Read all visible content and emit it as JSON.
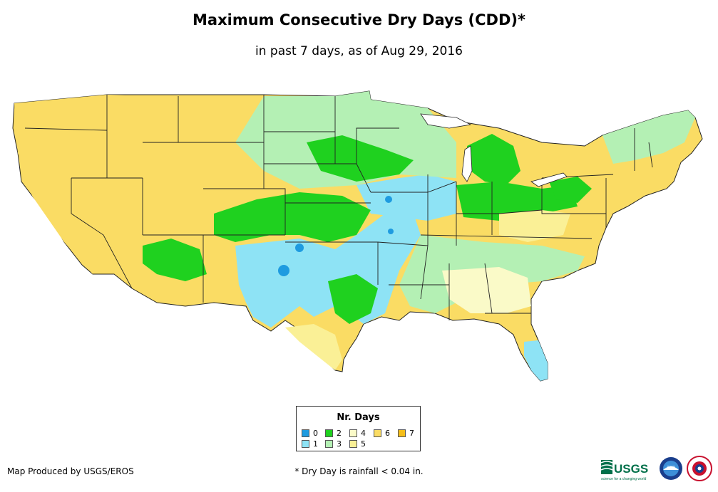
{
  "title": "Maximum Consecutive Dry Days (CDD)*",
  "subtitle": "in past 7 days, as of Aug 29, 2016",
  "legend": {
    "title": "Nr. Days",
    "items": [
      {
        "label": "0",
        "color": "#1e9be0"
      },
      {
        "label": "1",
        "color": "#8ee3f5"
      },
      {
        "label": "2",
        "color": "#1fd11f"
      },
      {
        "label": "3",
        "color": "#b4f0b4"
      },
      {
        "label": "4",
        "color": "#fafac8"
      },
      {
        "label": "5",
        "color": "#faf096"
      },
      {
        "label": "6",
        "color": "#fadc64"
      },
      {
        "label": "7",
        "color": "#f5be19"
      }
    ]
  },
  "credit": "Map Produced by USGS/EROS",
  "footnote": "* Dry Day is rainfall < 0.04 in.",
  "logos": {
    "usgs_text": "USGS",
    "usgs_tagline": "science for a changing world",
    "noaa_text": "noaa"
  },
  "colors": {
    "state_border": "#222222",
    "background": "#ffffff"
  }
}
